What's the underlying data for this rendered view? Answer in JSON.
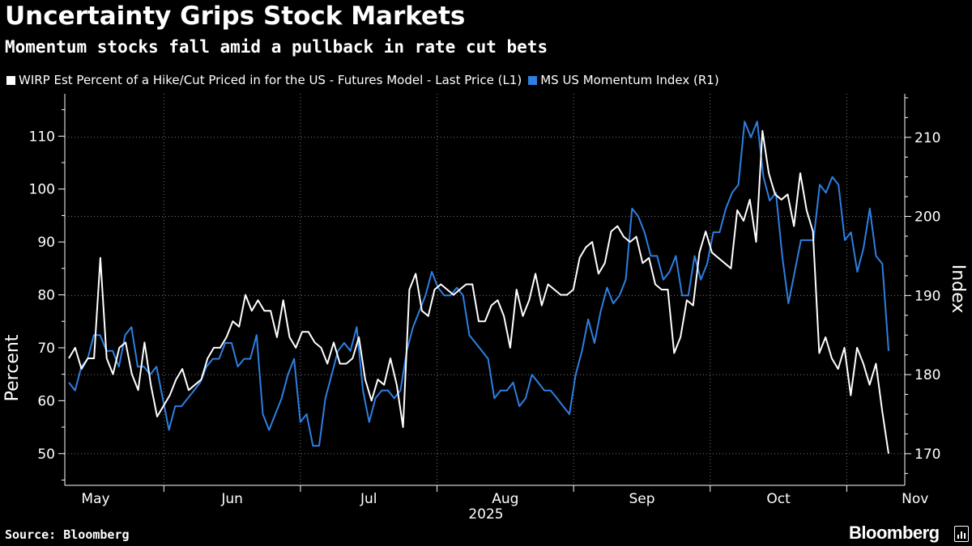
{
  "title": "Uncertainty Grips Stock Markets",
  "subtitle": "Momentum stocks fall amid a pullback in rate cut bets",
  "source": "Source: Bloomberg",
  "brand": "Bloomberg",
  "colors": {
    "background": "#000000",
    "wirp": "#ffffff",
    "momentum": "#2e7fe0",
    "grid": "#777777"
  },
  "chart_data": {
    "type": "line",
    "title": "Uncertainty Grips Stock Markets",
    "x_ticks": [
      "May",
      "Jun",
      "Jul",
      "Aug",
      "Sep",
      "Oct",
      "Nov"
    ],
    "x_year_label": "2025",
    "left_axis": {
      "label": "Percent",
      "ticks": [
        50,
        60,
        70,
        80,
        90,
        100,
        110
      ],
      "ylim": [
        44,
        118
      ]
    },
    "right_axis": {
      "label": "Index",
      "ticks": [
        170,
        180,
        190,
        200,
        210
      ],
      "ylim": [
        166.0,
        215.5
      ]
    },
    "series": [
      {
        "name": "WIRP Est Percent of a Hike/Cut Priced in for the US - Futures Model - Last Price (L1)",
        "axis": "left",
        "values": [
          68,
          70,
          66,
          68,
          68,
          87,
          68,
          65,
          70,
          71,
          65,
          62,
          71,
          63,
          57,
          59,
          61,
          64,
          66,
          62,
          63,
          64,
          68,
          70,
          70,
          72,
          75,
          74,
          80,
          77,
          79,
          77,
          77,
          72,
          79,
          72,
          70,
          73,
          73,
          71,
          70,
          67,
          71,
          67,
          67,
          68,
          72,
          64,
          60,
          64,
          63,
          68,
          63,
          55,
          81,
          84,
          77,
          76,
          81,
          82,
          81,
          80,
          81,
          82,
          82,
          75,
          75,
          78,
          79,
          76,
          70,
          81,
          76,
          79,
          84,
          78,
          82,
          81,
          80,
          80,
          81,
          87,
          89,
          90,
          84,
          86,
          92,
          93,
          91,
          90,
          91,
          86,
          87,
          82,
          81,
          81,
          69,
          72,
          79,
          78,
          88,
          92,
          88,
          87,
          86,
          85,
          96,
          94,
          98,
          90,
          111,
          103,
          99,
          98,
          99,
          93,
          103,
          96,
          92,
          69,
          72,
          68,
          66,
          70,
          61,
          70,
          67,
          63,
          67,
          58,
          50
        ]
      },
      {
        "name": "MS US Momentum Index (R1)",
        "axis": "right",
        "values": [
          179,
          178,
          181,
          182,
          185,
          185,
          183,
          183,
          181,
          185,
          186,
          181,
          181,
          180,
          181,
          177,
          173,
          176,
          176,
          177,
          178,
          179,
          181,
          182,
          182,
          184,
          184,
          181,
          182,
          182,
          185,
          175,
          173,
          175,
          177,
          180,
          182,
          174,
          175,
          171,
          171,
          177,
          180,
          183,
          184,
          183,
          186,
          178,
          174,
          177,
          178,
          178,
          177,
          178,
          183,
          186,
          188,
          190,
          193,
          191,
          190,
          190,
          191,
          190,
          185,
          184,
          183,
          182,
          177,
          178,
          178,
          179,
          176,
          177,
          180,
          179,
          178,
          178,
          177,
          176,
          175,
          180,
          183,
          187,
          184,
          188,
          191,
          189,
          190,
          192,
          201,
          200,
          198,
          195,
          195,
          192,
          193,
          195,
          190,
          190,
          195,
          192,
          194,
          198,
          198,
          201,
          203,
          204,
          212,
          210,
          212,
          205,
          202,
          203,
          195,
          189,
          193,
          197,
          197,
          197,
          204,
          203,
          205,
          204,
          197,
          198,
          193,
          196,
          201,
          195,
          194,
          183
        ]
      }
    ]
  }
}
